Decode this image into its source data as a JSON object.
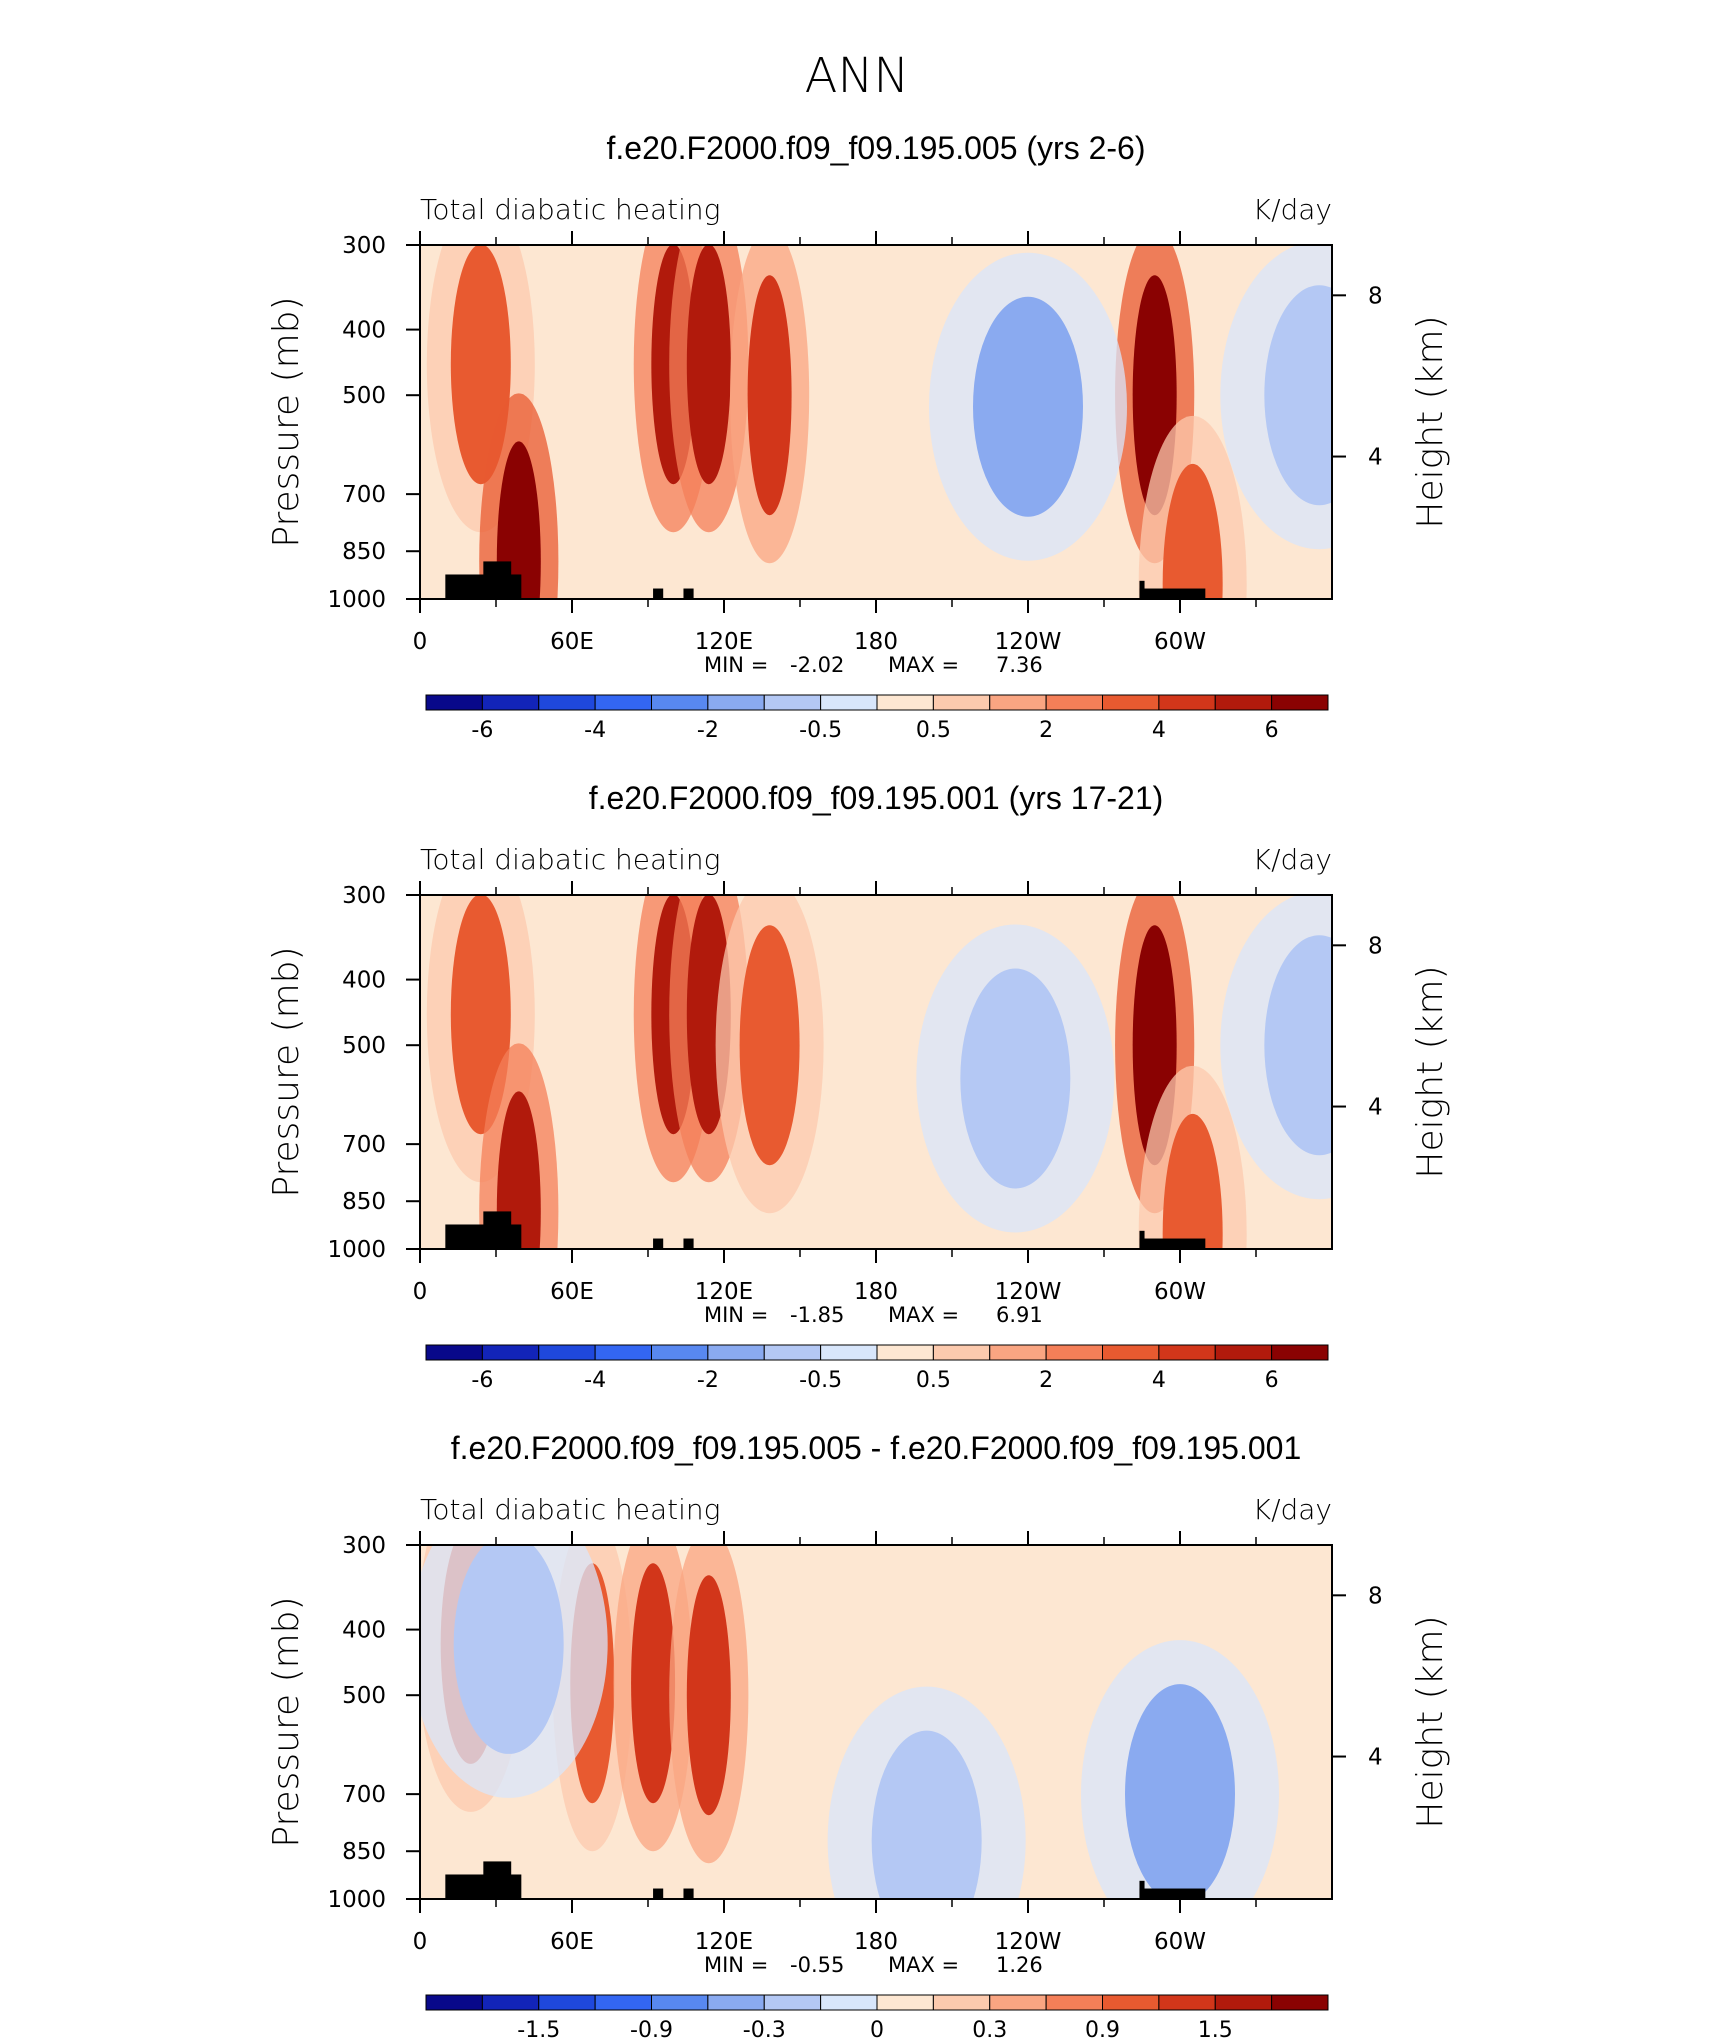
{
  "figure": {
    "title": "ANN"
  },
  "chart_data": [
    {
      "type": "heatmap",
      "title": "f.e20.F2000.f09_f09.195.005 (yrs 2-6)",
      "left_label": "Total diabatic heating",
      "right_label": "K/day",
      "ylabel": "Pressure (mb)",
      "ylabel_right": "Height (km)",
      "x_ticks": [
        "0",
        "60E",
        "120E",
        "180",
        "120W",
        "60W"
      ],
      "y_ticks": [
        "300",
        "400",
        "500",
        "700",
        "850",
        "1000"
      ],
      "y_right_ticks": [
        "8",
        "4"
      ],
      "xlim": [
        0,
        360
      ],
      "ylim": [
        1000,
        300
      ],
      "y_scale": "log",
      "min_label": "MIN =",
      "min_value": "-2.02",
      "max_label": "MAX =",
      "max_value": "7.36",
      "colorbar_labels": [
        "-6",
        "-4",
        "-2",
        "-0.5",
        "0.5",
        "2",
        "4",
        "6"
      ],
      "features": [
        {
          "lon": 24,
          "p": 450,
          "value": 4.5
        },
        {
          "lon": 39,
          "p": 880,
          "value": 7.0
        },
        {
          "lon": 100,
          "p": 450,
          "value": 6.5
        },
        {
          "lon": 114,
          "p": 450,
          "value": 6.5
        },
        {
          "lon": 138,
          "p": 500,
          "value": 5.0
        },
        {
          "lon": 290,
          "p": 500,
          "value": 7.3
        },
        {
          "lon": 305,
          "p": 950,
          "value": 4.5
        },
        {
          "lon": 240,
          "p": 520,
          "value": -1.9
        },
        {
          "lon": 355,
          "p": 500,
          "value": -1.5
        }
      ]
    },
    {
      "type": "heatmap",
      "title": "f.e20.F2000.f09_f09.195.001 (yrs 17-21)",
      "left_label": "Total diabatic heating",
      "right_label": "K/day",
      "ylabel": "Pressure (mb)",
      "ylabel_right": "Height (km)",
      "x_ticks": [
        "0",
        "60E",
        "120E",
        "180",
        "120W",
        "60W"
      ],
      "y_ticks": [
        "300",
        "400",
        "500",
        "700",
        "850",
        "1000"
      ],
      "y_right_ticks": [
        "8",
        "4"
      ],
      "xlim": [
        0,
        360
      ],
      "ylim": [
        1000,
        300
      ],
      "y_scale": "log",
      "min_label": "MIN =",
      "min_value": "-1.85",
      "max_label": "MAX =",
      "max_value": "6.91",
      "colorbar_labels": [
        "-6",
        "-4",
        "-2",
        "-0.5",
        "0.5",
        "2",
        "4",
        "6"
      ],
      "features": [
        {
          "lon": 24,
          "p": 450,
          "value": 4.0
        },
        {
          "lon": 39,
          "p": 880,
          "value": 6.5
        },
        {
          "lon": 100,
          "p": 450,
          "value": 6.0
        },
        {
          "lon": 114,
          "p": 450,
          "value": 6.0
        },
        {
          "lon": 138,
          "p": 500,
          "value": 4.5
        },
        {
          "lon": 290,
          "p": 500,
          "value": 6.9
        },
        {
          "lon": 305,
          "p": 950,
          "value": 4.0
        },
        {
          "lon": 235,
          "p": 560,
          "value": -1.8
        },
        {
          "lon": 355,
          "p": 500,
          "value": -1.5
        }
      ]
    },
    {
      "type": "heatmap",
      "title": "f.e20.F2000.f09_f09.195.005 - f.e20.F2000.f09_f09.195.001",
      "left_label": "Total diabatic heating",
      "right_label": "K/day",
      "ylabel": "Pressure (mb)",
      "ylabel_right": "Height (km)",
      "x_ticks": [
        "0",
        "60E",
        "120E",
        "180",
        "120W",
        "60W"
      ],
      "y_ticks": [
        "300",
        "400",
        "500",
        "700",
        "850",
        "1000"
      ],
      "y_right_ticks": [
        "8",
        "4"
      ],
      "xlim": [
        0,
        360
      ],
      "ylim": [
        1000,
        300
      ],
      "y_scale": "log",
      "min_label": "MIN =",
      "min_value": "-0.55",
      "max_label": "MAX =",
      "max_value": "1.26",
      "colorbar_labels": [
        "-1.5",
        "-0.9",
        "-0.3",
        "0",
        "0.3",
        "0.9",
        "1.5"
      ],
      "features": [
        {
          "lon": 20,
          "p": 420,
          "value": 1.0
        },
        {
          "lon": 68,
          "p": 480,
          "value": 1.1
        },
        {
          "lon": 92,
          "p": 480,
          "value": 1.2
        },
        {
          "lon": 114,
          "p": 500,
          "value": 1.2
        },
        {
          "lon": 35,
          "p": 420,
          "value": -0.4
        },
        {
          "lon": 200,
          "p": 820,
          "value": -0.4
        },
        {
          "lon": 300,
          "p": 700,
          "value": -0.5
        }
      ]
    }
  ],
  "colors": {
    "palette": [
      "#08088a",
      "#1224b8",
      "#1f48dc",
      "#3366f2",
      "#5888f0",
      "#8aaaf0",
      "#b4c8f4",
      "#d8e6fb",
      "#fde7d2",
      "#fccaae",
      "#f9a582",
      "#f47f58",
      "#e85a30",
      "#d2361a",
      "#b11a0c",
      "#8a0202"
    ]
  }
}
